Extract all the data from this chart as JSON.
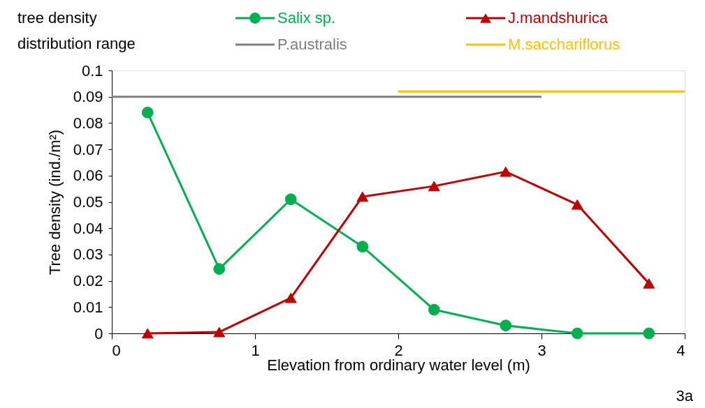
{
  "chart_data": {
    "type": "line",
    "xlabel": "Elevation from ordinary water level (m)",
    "ylabel": "Tree density (ind./m²)",
    "annotations": [
      "tree density",
      "distribution range",
      "3a"
    ],
    "series": [
      {
        "name": "Salix sp.",
        "color": "#00b050",
        "marker": "circle",
        "x": [
          0.25,
          0.75,
          1.25,
          1.75,
          2.25,
          2.75,
          3.25,
          3.75
        ],
        "values": [
          0.084,
          0.0245,
          0.051,
          0.033,
          0.009,
          0.003,
          0,
          0
        ]
      },
      {
        "name": "J.mandshurica",
        "color": "#c00000",
        "marker": "triangle",
        "x": [
          0.25,
          0.75,
          1.25,
          1.75,
          2.25,
          2.75,
          3.25,
          3.75
        ],
        "values": [
          0,
          0.0005,
          0.0135,
          0.052,
          0.056,
          0.0615,
          0.049,
          0.019
        ]
      },
      {
        "name": "P.australis",
        "color": "#7f7f7f",
        "marker": "none",
        "x": [
          0,
          3
        ],
        "values": [
          0.09,
          0.09
        ]
      },
      {
        "name": "M.sacchariflorus",
        "color": "#ffc000",
        "marker": "none",
        "x": [
          2,
          4
        ],
        "values": [
          0.092,
          0.092
        ]
      }
    ],
    "xlim": [
      0,
      4
    ],
    "xticks": [
      0,
      1,
      2,
      3,
      4
    ],
    "ylim": [
      0,
      0.1
    ],
    "yticks": [
      0,
      0.01,
      0.02,
      0.03,
      0.04,
      0.05,
      0.06,
      0.07,
      0.08,
      0.09,
      0.1
    ],
    "grid": false,
    "legend": "top"
  }
}
